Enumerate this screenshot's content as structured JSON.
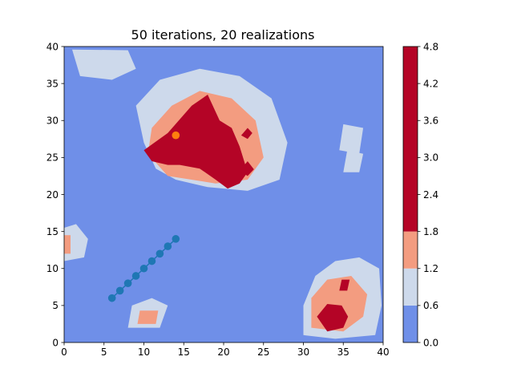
{
  "chart_data": {
    "type": "heatmap",
    "subtype": "filled-contour",
    "title": "50 iterations, 20 realizations",
    "xlabel": "",
    "ylabel": "",
    "xlim": [
      0,
      40
    ],
    "ylim": [
      0,
      40
    ],
    "x_ticks": [
      "0",
      "5",
      "10",
      "15",
      "20",
      "25",
      "30",
      "35",
      "40"
    ],
    "y_ticks": [
      "0",
      "5",
      "10",
      "15",
      "20",
      "25",
      "30",
      "35",
      "40"
    ],
    "grid": false,
    "colorbar": {
      "ticks": [
        "0.0",
        "0.6",
        "1.2",
        "1.8",
        "2.4",
        "3.0",
        "3.6",
        "4.2",
        "4.8"
      ],
      "levels": [
        0.0,
        0.6,
        1.2,
        1.8,
        4.8
      ],
      "colors": [
        "#6f8fe8",
        "#cdd9eb",
        "#f39c80",
        "#b40426"
      ]
    },
    "background_level_color": "#6f8fe8",
    "regions": [
      {
        "level": 1,
        "points": [
          [
            14,
            22
          ],
          [
            18,
            21
          ],
          [
            23,
            20.5
          ],
          [
            27,
            22
          ],
          [
            28,
            27
          ],
          [
            26,
            33
          ],
          [
            22,
            36
          ],
          [
            17,
            37
          ],
          [
            12,
            35.5
          ],
          [
            9,
            32
          ],
          [
            10,
            27
          ],
          [
            11.5,
            23.5
          ]
        ]
      },
      {
        "level": 1,
        "points": [
          [
            30,
            1
          ],
          [
            34,
            0.5
          ],
          [
            39,
            1
          ],
          [
            39.8,
            5
          ],
          [
            39.5,
            10
          ],
          [
            37,
            11.5
          ],
          [
            34,
            11
          ],
          [
            31.5,
            9
          ],
          [
            30,
            5
          ]
        ]
      },
      {
        "level": 1,
        "points": [
          [
            1,
            39.6
          ],
          [
            8,
            39.5
          ],
          [
            9,
            37
          ],
          [
            6,
            35.5
          ],
          [
            2,
            36
          ]
        ]
      },
      {
        "level": 1,
        "points": [
          [
            0,
            11
          ],
          [
            2.5,
            11.5
          ],
          [
            3,
            14
          ],
          [
            1.5,
            16
          ],
          [
            0,
            15.5
          ]
        ]
      },
      {
        "level": 1,
        "points": [
          [
            8,
            2
          ],
          [
            12,
            2
          ],
          [
            13,
            5
          ],
          [
            11,
            6
          ],
          [
            8.5,
            5
          ]
        ]
      },
      {
        "level": 1,
        "points": [
          [
            35,
            23
          ],
          [
            37,
            23
          ],
          [
            37.5,
            25.5
          ],
          [
            35.5,
            26
          ]
        ]
      },
      {
        "level": 1,
        "points": [
          [
            34.5,
            26
          ],
          [
            37,
            25.5
          ],
          [
            37.5,
            29
          ],
          [
            35,
            29.5
          ]
        ]
      },
      {
        "level": 2,
        "points": [
          [
            13,
            22.5
          ],
          [
            19,
            21.5
          ],
          [
            23,
            22
          ],
          [
            25,
            25
          ],
          [
            24,
            30
          ],
          [
            21,
            33
          ],
          [
            17,
            34
          ],
          [
            13.5,
            32
          ],
          [
            11,
            29
          ],
          [
            10.5,
            25.5
          ]
        ]
      },
      {
        "level": 2,
        "points": [
          [
            31,
            2
          ],
          [
            35,
            1.5
          ],
          [
            37.5,
            3.5
          ],
          [
            38,
            6.5
          ],
          [
            36,
            9
          ],
          [
            33,
            8.5
          ],
          [
            31,
            6
          ]
        ]
      },
      {
        "level": 2,
        "points": [
          [
            9.2,
            2.5
          ],
          [
            11.5,
            2.5
          ],
          [
            11.8,
            4.3
          ],
          [
            9.5,
            4.3
          ]
        ]
      },
      {
        "level": 2,
        "points": [
          [
            0,
            12
          ],
          [
            0.8,
            12
          ],
          [
            0.8,
            14.5
          ],
          [
            0,
            14.5
          ]
        ]
      },
      {
        "level": 3,
        "points": [
          [
            10,
            26
          ],
          [
            13,
            28.3
          ],
          [
            16,
            32
          ],
          [
            18,
            33.5
          ],
          [
            19.5,
            30
          ],
          [
            21,
            29
          ],
          [
            22,
            26.5
          ],
          [
            23,
            23
          ],
          [
            22,
            21.5
          ],
          [
            20.5,
            20.8
          ],
          [
            19,
            22
          ],
          [
            17,
            23.5
          ],
          [
            14.5,
            24
          ],
          [
            13,
            24
          ],
          [
            11,
            24.5
          ]
        ]
      },
      {
        "level": 3,
        "points": [
          [
            33,
            1.5
          ],
          [
            35,
            2
          ],
          [
            35.6,
            3.5
          ],
          [
            34.8,
            5
          ],
          [
            33,
            5.2
          ],
          [
            31.7,
            3.5
          ]
        ]
      },
      {
        "level": 3,
        "points": [
          [
            34.5,
            7
          ],
          [
            35.5,
            7
          ],
          [
            35.8,
            8.5
          ],
          [
            34.8,
            8.5
          ]
        ]
      },
      {
        "level": 3,
        "points": [
          [
            22.2,
            28
          ],
          [
            23,
            27.5
          ],
          [
            23.6,
            28.3
          ],
          [
            23,
            29
          ]
        ]
      },
      {
        "level": 3,
        "points": [
          [
            22,
            23.2
          ],
          [
            23,
            22.5
          ],
          [
            23.8,
            23.4
          ],
          [
            23,
            24.5
          ]
        ]
      }
    ],
    "series": [
      {
        "type": "line",
        "color": "#1f77b4",
        "x": [
          6,
          7,
          8,
          9,
          10,
          11,
          12,
          13,
          14
        ],
        "y": [
          6,
          7,
          8,
          9,
          10,
          11,
          12,
          13,
          14
        ]
      },
      {
        "type": "scatter",
        "color": "#ff7f0e",
        "x": [
          14
        ],
        "y": [
          28
        ]
      }
    ]
  }
}
